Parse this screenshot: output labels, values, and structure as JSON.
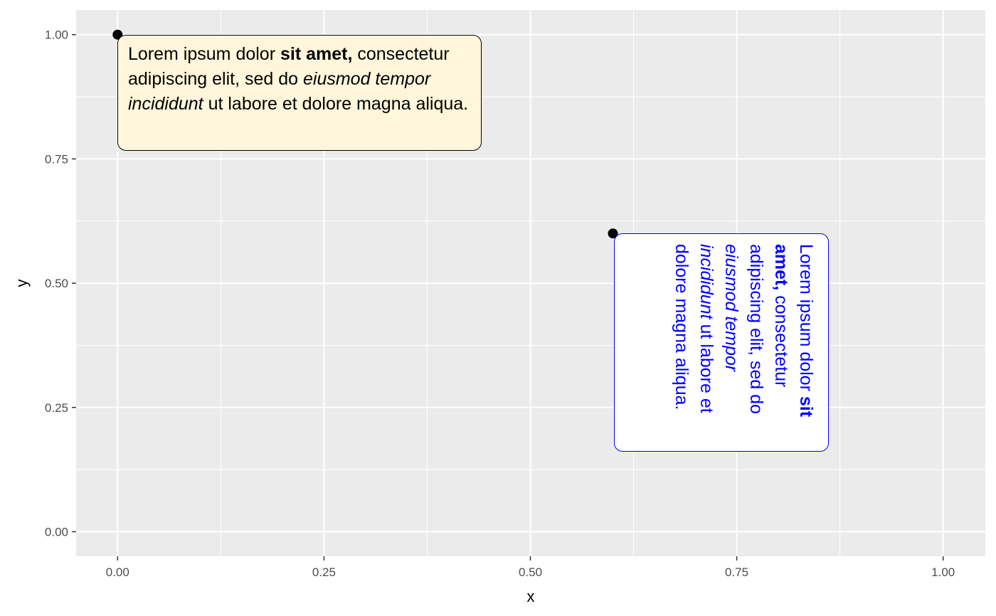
{
  "chart_data": {
    "type": "scatter",
    "title": "",
    "xlabel": "x",
    "ylabel": "y",
    "xlim": [
      0,
      1
    ],
    "ylim": [
      0,
      1
    ],
    "x_ticks": [
      "0.00",
      "0.25",
      "0.50",
      "0.75",
      "1.00"
    ],
    "y_ticks": [
      "0.00",
      "0.25",
      "0.50",
      "0.75",
      "1.00"
    ],
    "grid": true,
    "legend": "none",
    "background_color": "#ebebeb",
    "points": [
      {
        "x": 0.0,
        "y": 1.0
      },
      {
        "x": 0.6,
        "y": 0.6
      }
    ],
    "annotations": [
      {
        "anchor_x": 0.0,
        "anchor_y": 1.0,
        "rotation": "none",
        "fill": "#fff6db",
        "border_color": "#000000",
        "text_color": "#000000",
        "segments": [
          {
            "text": "Lorem ipsum dolor ",
            "style": "normal"
          },
          {
            "text": "sit amet,",
            "style": "bold"
          },
          {
            "text": " consectetur adipiscing elit, sed do ",
            "style": "normal"
          },
          {
            "text": "eiusmod tempor incididunt",
            "style": "italic"
          },
          {
            "text": " ut labore et dolore magna aliqua.",
            "style": "normal"
          }
        ]
      },
      {
        "anchor_x": 0.6,
        "anchor_y": 0.6,
        "rotation": "vertical",
        "fill": "#ffffff",
        "border_color": "#0000ff",
        "text_color": "#0000ff",
        "segments": [
          {
            "text": "Lorem ipsum dolor ",
            "style": "normal"
          },
          {
            "text": "sit amet,",
            "style": "bold"
          },
          {
            "text": " consectetur adipiscing elit, sed do ",
            "style": "normal"
          },
          {
            "text": "eiusmod tempor incididunt",
            "style": "italic"
          },
          {
            "text": " ut labore et dolore magna aliqua.",
            "style": "normal"
          }
        ]
      }
    ]
  }
}
